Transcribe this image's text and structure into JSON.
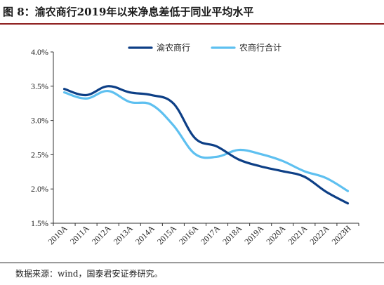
{
  "figure": {
    "title": "图 8：渝农商行2019年以来净息差低于同业平均水平",
    "source": "数据来源：wind，国泰君安证券研究。"
  },
  "chart_data": {
    "type": "line",
    "categories": [
      "2010A",
      "2011A",
      "2012A",
      "2013A",
      "2014A",
      "2015A",
      "2016A",
      "2017A",
      "2018A",
      "2019A",
      "2020A",
      "2021A",
      "2022A",
      "2023H"
    ],
    "series": [
      {
        "name": "渝农商行",
        "color": "#0d3f86",
        "values": [
          3.46,
          3.37,
          3.5,
          3.41,
          3.37,
          3.25,
          2.74,
          2.62,
          2.43,
          2.33,
          2.26,
          2.18,
          1.96,
          1.79
        ]
      },
      {
        "name": "农商行合计",
        "color": "#5ec0f0",
        "values": [
          3.41,
          3.32,
          3.43,
          3.27,
          3.23,
          2.93,
          2.51,
          2.47,
          2.57,
          2.51,
          2.41,
          2.26,
          2.16,
          1.97
        ]
      }
    ],
    "y_ticks": [
      "1.5%",
      "2.0%",
      "2.5%",
      "3.0%",
      "3.5%",
      "4.0%"
    ],
    "ylim": [
      1.5,
      4.0
    ],
    "y_unit": "%",
    "legend_position": "top-center",
    "grid": false
  }
}
